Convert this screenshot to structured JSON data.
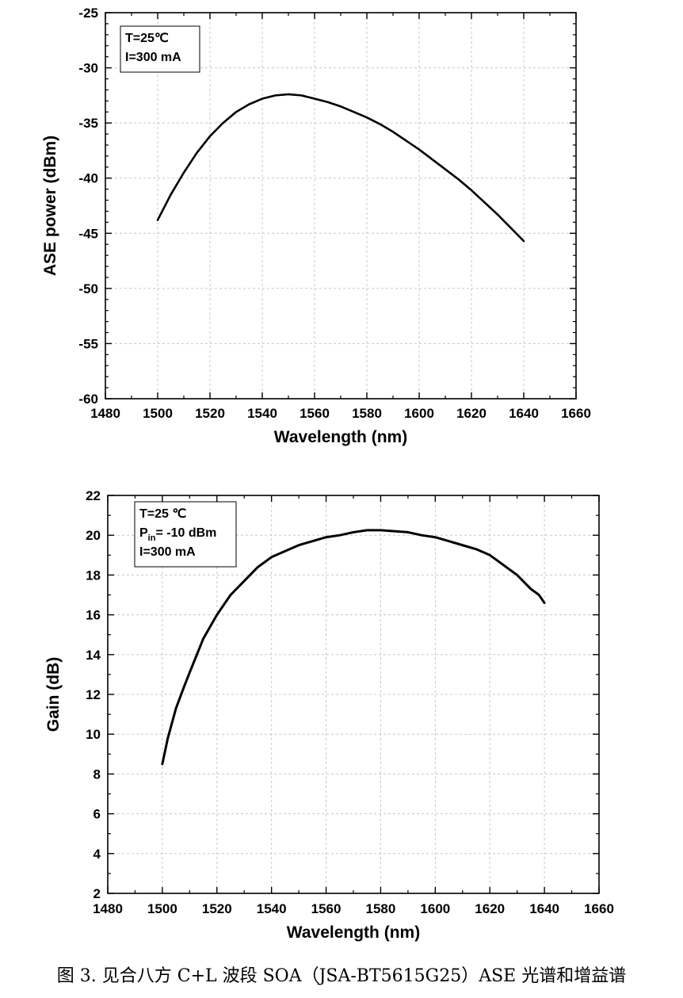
{
  "chart_data": [
    {
      "type": "line",
      "title": "",
      "xlabel": "Wavelength (nm)",
      "ylabel": "ASE power (dBm)",
      "xlim": [
        1480,
        1660
      ],
      "ylim": [
        -60,
        -25
      ],
      "xticks": [
        1480,
        1500,
        1520,
        1540,
        1560,
        1580,
        1600,
        1620,
        1640,
        1660
      ],
      "yticks": [
        -25,
        -30,
        -35,
        -40,
        -45,
        -50,
        -55,
        -60
      ],
      "grid": true,
      "legend_placement": "top-left",
      "annotations": [
        "T=25℃",
        "I=300 mA"
      ],
      "series": [
        {
          "x": [
            1500,
            1505,
            1510,
            1515,
            1520,
            1525,
            1530,
            1535,
            1540,
            1545,
            1550,
            1555,
            1560,
            1565,
            1570,
            1575,
            1580,
            1585,
            1590,
            1595,
            1600,
            1605,
            1610,
            1615,
            1620,
            1625,
            1630,
            1635,
            1640
          ],
          "y": [
            -43.8,
            -41.5,
            -39.5,
            -37.7,
            -36.2,
            -35.0,
            -34.0,
            -33.3,
            -32.8,
            -32.5,
            -32.4,
            -32.5,
            -32.8,
            -33.1,
            -33.5,
            -34.0,
            -34.5,
            -35.1,
            -35.8,
            -36.6,
            -37.4,
            -38.3,
            -39.2,
            -40.1,
            -41.1,
            -42.2,
            -43.3,
            -44.5,
            -45.7
          ],
          "color": "#000000"
        }
      ]
    },
    {
      "type": "line",
      "title": "",
      "xlabel": "Wavelength (nm)",
      "ylabel": "Gain (dB)",
      "xlim": [
        1480,
        1660
      ],
      "ylim": [
        2,
        22
      ],
      "xticks": [
        1480,
        1500,
        1520,
        1540,
        1560,
        1580,
        1600,
        1620,
        1640,
        1660
      ],
      "yticks": [
        2,
        4,
        6,
        8,
        10,
        12,
        14,
        16,
        18,
        20,
        22
      ],
      "grid": true,
      "legend_placement": "top-left",
      "annotations": [
        "T=25 ℃",
        "= -10 dBm",
        "I=300 mA"
      ],
      "annotation_symbol": {
        "base": "P",
        "subscript": "in"
      },
      "series": [
        {
          "x": [
            1500,
            1502,
            1505,
            1508,
            1510,
            1515,
            1520,
            1525,
            1530,
            1535,
            1540,
            1545,
            1550,
            1555,
            1560,
            1565,
            1570,
            1575,
            1580,
            1585,
            1590,
            1595,
            1600,
            1605,
            1610,
            1615,
            1620,
            1625,
            1630,
            1635,
            1638,
            1640
          ],
          "y": [
            8.5,
            9.8,
            11.3,
            12.4,
            13.1,
            14.8,
            16.0,
            17.0,
            17.7,
            18.4,
            18.9,
            19.2,
            19.5,
            19.7,
            19.9,
            20.0,
            20.15,
            20.25,
            20.25,
            20.2,
            20.15,
            20.0,
            19.9,
            19.7,
            19.5,
            19.3,
            19.0,
            18.5,
            18.0,
            17.3,
            17.0,
            16.6
          ],
          "color": "#000000"
        }
      ]
    }
  ],
  "caption": "图 3. 见合八方 C+L 波段 SOA（JSA-BT5615G25）ASE 光谱和增益谱"
}
